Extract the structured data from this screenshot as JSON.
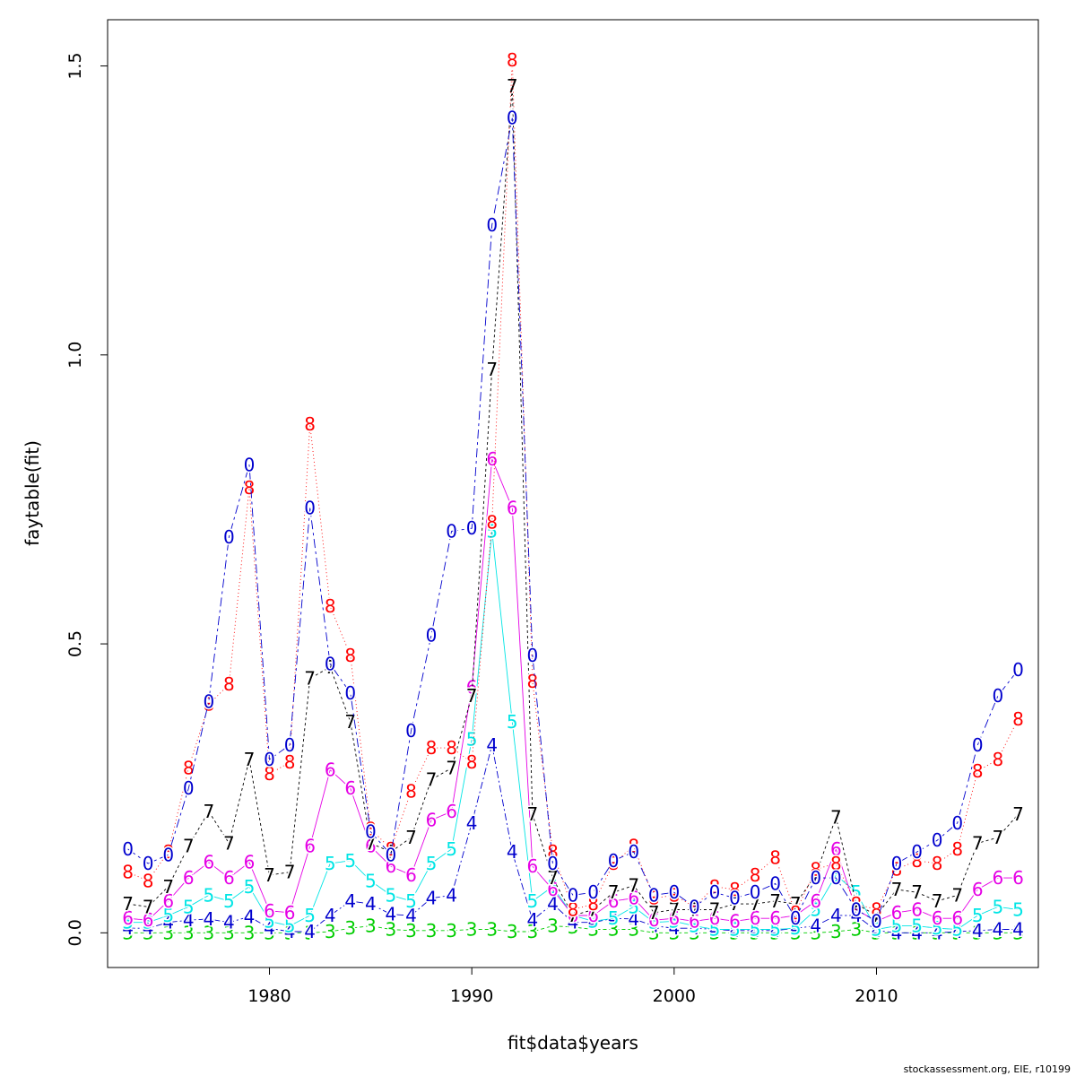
{
  "chart_data": {
    "type": "line",
    "xlabel": "fit$data$years",
    "ylabel": "faytable(fit)",
    "xlim": [
      1972,
      2018
    ],
    "ylim": [
      -0.06,
      1.58
    ],
    "x_ticks": [
      "1980",
      "1990",
      "2000",
      "2010"
    ],
    "x_tick_values": [
      1980,
      1990,
      2000,
      2010
    ],
    "y_ticks": [
      "0.0",
      "0.5",
      "1.0",
      "1.5"
    ],
    "y_tick_values": [
      0,
      0.5,
      1.0,
      1.5
    ],
    "x": [
      1973,
      1974,
      1975,
      1976,
      1977,
      1978,
      1979,
      1980,
      1981,
      1982,
      1983,
      1984,
      1985,
      1986,
      1987,
      1988,
      1989,
      1990,
      1991,
      1992,
      1993,
      1994,
      1995,
      1996,
      1997,
      1998,
      1999,
      2000,
      2001,
      2002,
      2003,
      2004,
      2005,
      2006,
      2007,
      2008,
      2009,
      2010,
      2011,
      2012,
      2013,
      2014,
      2015,
      2016,
      2017
    ],
    "series": [
      {
        "name": "3",
        "color": "#00cd00",
        "dash": "4,3",
        "values": [
          0.0,
          0.0,
          0.0,
          0.0,
          0.0,
          0.0,
          0.0,
          0.0,
          0.0,
          0.0,
          0.002,
          0.008,
          0.012,
          0.006,
          0.004,
          0.004,
          0.004,
          0.006,
          0.006,
          0.002,
          0.002,
          0.012,
          0.01,
          0.006,
          0.006,
          0.006,
          0.0,
          0.0,
          0.0,
          0.0,
          0.0,
          0.0,
          0.0,
          0.0,
          0.0,
          0.002,
          0.006,
          0.0,
          0.0,
          0.0,
          0.0,
          0.0,
          0.0,
          0.0,
          0.0
        ]
      },
      {
        "name": "4",
        "color": "#0000cd",
        "dash": "8,3,2,3",
        "values": [
          0.008,
          0.008,
          0.018,
          0.022,
          0.024,
          0.018,
          0.028,
          0.008,
          0.002,
          0.002,
          0.03,
          0.055,
          0.05,
          0.032,
          0.03,
          0.06,
          0.065,
          0.19,
          0.325,
          0.14,
          0.022,
          0.05,
          0.018,
          0.018,
          0.025,
          0.024,
          0.012,
          0.008,
          0.008,
          0.006,
          0.004,
          0.004,
          0.004,
          0.008,
          0.012,
          0.03,
          0.03,
          0.004,
          0.0,
          0.0,
          0.0,
          0.002,
          0.004,
          0.006,
          0.006
        ]
      },
      {
        "name": "5",
        "color": "#00e5e5",
        "dash": "1,0",
        "values": [
          0.018,
          0.018,
          0.03,
          0.045,
          0.065,
          0.055,
          0.08,
          0.02,
          0.012,
          0.03,
          0.12,
          0.125,
          0.09,
          0.065,
          0.055,
          0.12,
          0.145,
          0.335,
          0.695,
          0.365,
          0.055,
          0.08,
          0.03,
          0.02,
          0.025,
          0.045,
          0.018,
          0.02,
          0.012,
          0.006,
          0.006,
          0.006,
          0.006,
          0.008,
          0.04,
          0.1,
          0.07,
          0.006,
          0.012,
          0.012,
          0.008,
          0.006,
          0.03,
          0.045,
          0.04
        ]
      },
      {
        "name": "6",
        "color": "#e500e5",
        "dash": "1,0",
        "values": [
          0.025,
          0.022,
          0.055,
          0.095,
          0.122,
          0.095,
          0.122,
          0.038,
          0.035,
          0.15,
          0.282,
          0.25,
          0.15,
          0.115,
          0.1,
          0.195,
          0.21,
          0.425,
          0.82,
          0.735,
          0.115,
          0.075,
          0.03,
          0.03,
          0.055,
          0.06,
          0.022,
          0.025,
          0.02,
          0.025,
          0.02,
          0.025,
          0.025,
          0.03,
          0.055,
          0.145,
          0.04,
          0.02,
          0.035,
          0.04,
          0.025,
          0.025,
          0.075,
          0.095,
          0.095
        ]
      },
      {
        "name": "7",
        "color": "#000000",
        "dash": "3,3",
        "values": [
          0.05,
          0.045,
          0.08,
          0.15,
          0.21,
          0.155,
          0.3,
          0.1,
          0.105,
          0.44,
          0.46,
          0.365,
          0.155,
          0.14,
          0.165,
          0.265,
          0.285,
          0.41,
          0.975,
          1.465,
          0.205,
          0.095,
          0.03,
          0.04,
          0.07,
          0.082,
          0.035,
          0.04,
          0.04,
          0.04,
          0.05,
          0.05,
          0.055,
          0.05,
          0.1,
          0.2,
          0.05,
          0.03,
          0.075,
          0.07,
          0.055,
          0.065,
          0.155,
          0.165,
          0.205
        ]
      },
      {
        "name": "8",
        "color": "#ff0000",
        "dash": "1,3",
        "values": [
          0.105,
          0.09,
          0.14,
          0.285,
          0.395,
          0.43,
          0.77,
          0.275,
          0.295,
          0.88,
          0.565,
          0.48,
          0.18,
          0.145,
          0.245,
          0.32,
          0.32,
          0.295,
          0.71,
          1.51,
          0.435,
          0.14,
          0.04,
          0.05,
          0.12,
          0.15,
          0.06,
          0.065,
          0.045,
          0.08,
          0.075,
          0.1,
          0.13,
          0.035,
          0.11,
          0.12,
          0.05,
          0.04,
          0.11,
          0.125,
          0.12,
          0.145,
          0.28,
          0.3,
          0.37
        ]
      },
      {
        "name": "0",
        "color": "#0000cd",
        "dash": "10,4,3,4",
        "values": [
          0.145,
          0.12,
          0.135,
          0.25,
          0.4,
          0.685,
          0.81,
          0.3,
          0.325,
          0.735,
          0.465,
          0.415,
          0.175,
          0.135,
          0.35,
          0.515,
          0.695,
          0.7,
          1.225,
          1.41,
          0.48,
          0.12,
          0.065,
          0.07,
          0.125,
          0.14,
          0.065,
          0.07,
          0.045,
          0.07,
          0.06,
          0.07,
          0.085,
          0.025,
          0.095,
          0.095,
          0.04,
          0.02,
          0.12,
          0.14,
          0.16,
          0.19,
          0.325,
          0.41,
          0.455
        ]
      }
    ]
  },
  "footer": "stockassessment.org, EIE, r10199"
}
